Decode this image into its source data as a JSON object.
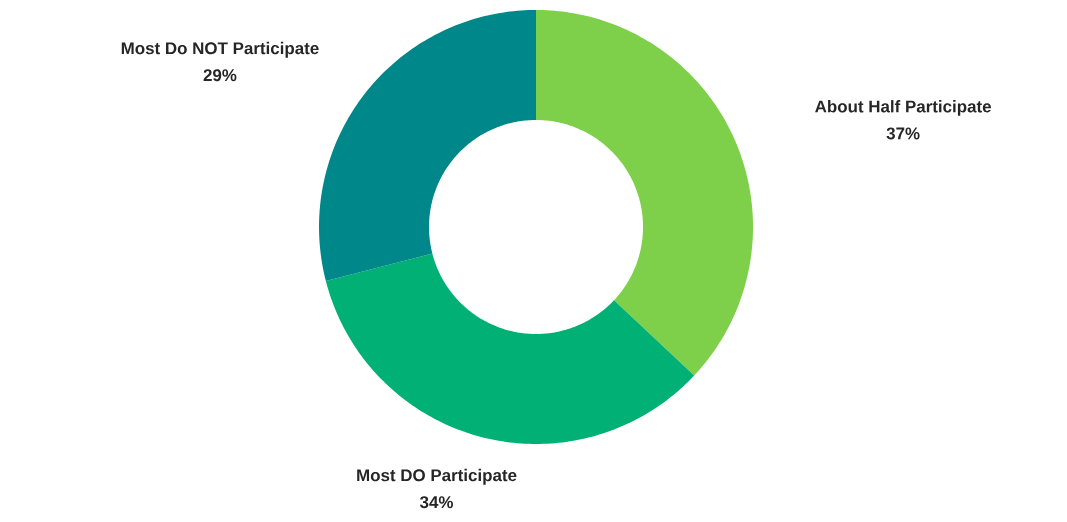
{
  "chart_data": {
    "type": "donut",
    "categories": [
      "About Half Participate",
      "Most DO Participate",
      "Most Do NOT Participate"
    ],
    "values": [
      37,
      34,
      29
    ],
    "value_labels": [
      "37%",
      "34%",
      "29%"
    ],
    "colors": [
      "#7ed04b",
      "#00b074",
      "#00878a"
    ]
  }
}
